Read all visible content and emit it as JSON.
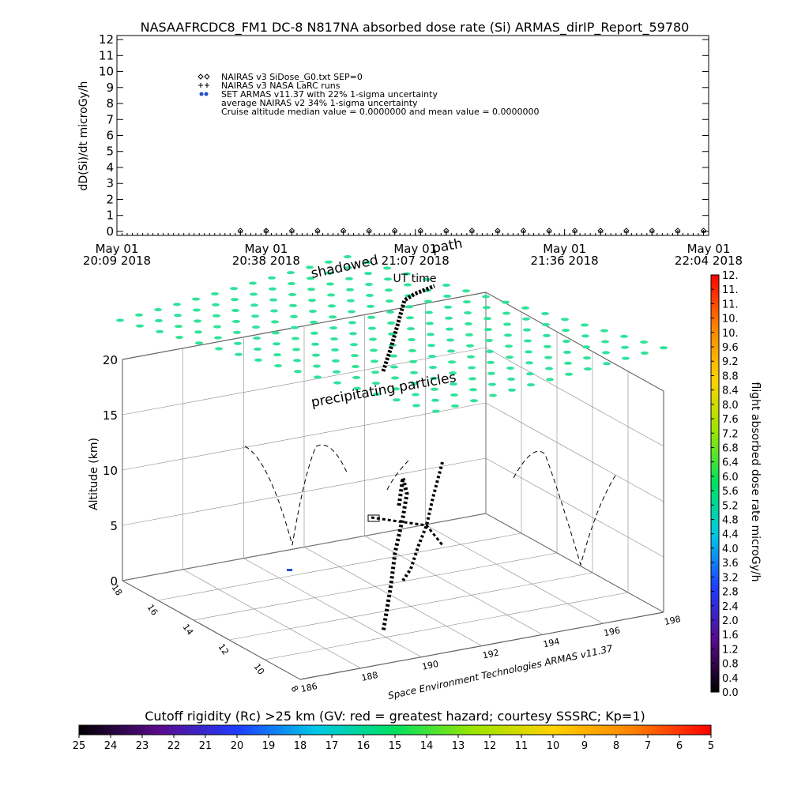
{
  "chart_data": [
    {
      "type": "scatter",
      "title": "NASAAFRCDC8_FM1 DC-8   N817NA absorbed dose rate (Si) ARMAS_dirIP_Report_59780",
      "y_label": "dD(Si)/dt microGy/h",
      "xlim": [
        "2018-05-01T20:09",
        "2018-05-01T22:04"
      ],
      "xticks": [
        {
          "value": "2018-05-01T20:09",
          "label": [
            "May 01",
            "20:09 2018"
          ]
        },
        {
          "value": "2018-05-01T20:38",
          "label": [
            "May 01",
            "20:38 2018"
          ]
        },
        {
          "value": "2018-05-01T21:07",
          "label": [
            "May 01",
            "21:07 2018"
          ]
        },
        {
          "value": "2018-05-01T21:36",
          "label": [
            "May 01",
            "21:36 2018"
          ]
        },
        {
          "value": "2018-05-01T22:04",
          "label": [
            "May 01",
            "22:04 2018"
          ]
        }
      ],
      "ylim": [
        -0.25,
        12.25
      ],
      "yticks": [
        0,
        1,
        2,
        3,
        4,
        5,
        6,
        7,
        8,
        9,
        10,
        11,
        12
      ],
      "x": [
        "2018-05-01T20:33",
        "2018-05-01T20:38",
        "2018-05-01T20:43",
        "2018-05-01T20:48",
        "2018-05-01T20:53",
        "2018-05-01T20:58",
        "2018-05-01T21:03",
        "2018-05-01T21:08",
        "2018-05-01T21:13",
        "2018-05-01T21:18",
        "2018-05-01T21:23",
        "2018-05-01T21:28",
        "2018-05-01T21:33",
        "2018-05-01T21:38",
        "2018-05-01T21:43",
        "2018-05-01T21:48",
        "2018-05-01T21:53",
        "2018-05-01T21:58",
        "2018-05-01T22:03"
      ],
      "series": [
        {
          "name": "NAIRAS v3 SiDose_G0.txt SEP=0",
          "marker": "diamond",
          "color": "#000000",
          "values": [
            0,
            0,
            0,
            0,
            0,
            0,
            0,
            0,
            0,
            0,
            0,
            0,
            0,
            0,
            0,
            0,
            0,
            0,
            0
          ]
        },
        {
          "name": "NAIRAS v3 NASA LaRC runs",
          "marker": "plus",
          "color": "#000000",
          "values": [
            0,
            0,
            0,
            0,
            0,
            0,
            0,
            0,
            0,
            0,
            0,
            0,
            0,
            0,
            0,
            0,
            0,
            0,
            0
          ]
        }
      ],
      "legend_other": [
        {
          "name": "SET ARMAS v11.37 with 22% 1-sigma uncertainty",
          "marker": "dot",
          "color": "#1e50c8"
        },
        {
          "name": "average NAIRAS v2 34% 1-sigma uncertainty",
          "marker": "none",
          "color": "#000000"
        }
      ],
      "annotation": "Cruise altitude median value = 0.0000000 and mean value = 0.0000000"
    },
    {
      "type": "colorbar",
      "orientation": "vertical",
      "title": "flight absorbed dose rate microGy/h",
      "lim": [
        0,
        11.6
      ],
      "ticks": [
        {
          "value": 0,
          "label": "0.0"
        },
        0.4,
        0.8,
        1.2,
        1.6,
        {
          "value": 2,
          "label": "2.0"
        },
        2.4,
        2.8,
        3.2,
        3.6,
        {
          "value": 4,
          "label": "4.0"
        },
        4.4,
        4.8,
        5.2,
        5.6,
        {
          "value": 6,
          "label": "6.0"
        },
        6.4,
        6.8,
        7.2,
        7.6,
        {
          "value": 8,
          "label": "8.0"
        },
        8.4,
        8.8,
        9.2,
        9.6,
        {
          "value": 10,
          "label": "10."
        },
        {
          "value": 10.4,
          "label": "10."
        },
        {
          "value": 10.8,
          "label": "11."
        },
        {
          "value": 11.2,
          "label": "11."
        },
        {
          "value": 11.6,
          "label": "12."
        }
      ],
      "colors": [
        "#000000",
        "#5a0a8c",
        "#1e3cff",
        "#00c8e6",
        "#00e060",
        "#9be600",
        "#ffd200",
        "#ff8200",
        "#ff0000"
      ]
    },
    {
      "type": "colorbar",
      "orientation": "horizontal",
      "title": "Cutoff rigidity (Rc) >25 km (GV: red = greatest hazard; courtesy SSSRC; Kp=1)",
      "lim": [
        25,
        5
      ],
      "ticks": [
        25,
        24,
        23,
        22,
        21,
        20,
        19,
        18,
        17,
        16,
        15,
        14,
        13,
        12,
        11,
        10,
        9,
        8,
        7,
        6,
        5
      ],
      "colors": [
        "#000000",
        "#5a0a8c",
        "#1e3cff",
        "#00c8e6",
        "#00e060",
        "#9be600",
        "#ffd200",
        "#ff8200",
        "#ff0000"
      ]
    }
  ],
  "panel3d": {
    "labels": {
      "shadowed": "shadowed",
      "path": "path",
      "time_axis": "UT time",
      "precipitating": "precipitating particles",
      "credit": "Space Environment Technologies ARMAS v11.37"
    },
    "z_label": "Altitude (km)",
    "zlim": [
      0,
      20
    ],
    "zticks": [
      0,
      5,
      10,
      15,
      20
    ],
    "rc_ticks": [
      18,
      16,
      14,
      12,
      10,
      8
    ],
    "lon_ticks": [
      186,
      188,
      190,
      192,
      194,
      196,
      198
    ]
  }
}
